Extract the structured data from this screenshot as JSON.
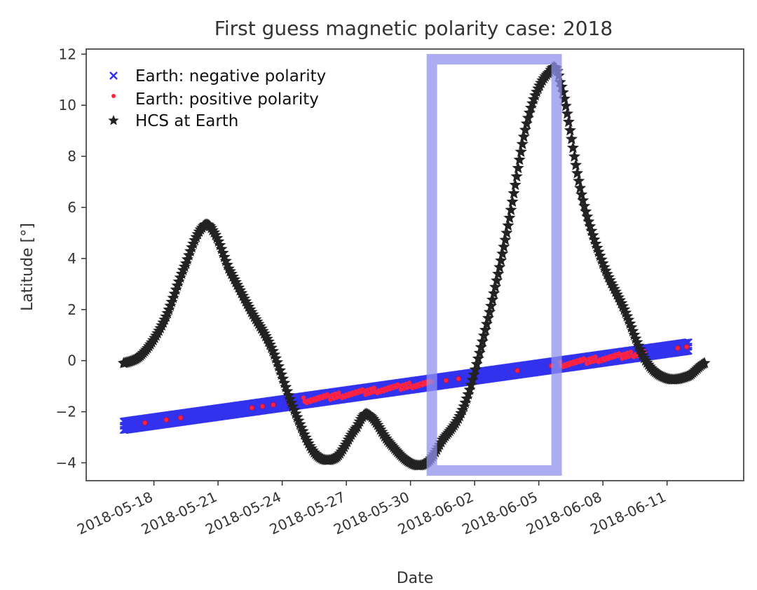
{
  "chart_data": {
    "type": "scatter",
    "title": "First guess magnetic polarity case: 2018",
    "xlabel": "Date",
    "ylabel": "Latitude [°]",
    "x_tick_labels": [
      "2018-05-18",
      "2018-05-21",
      "2018-05-24",
      "2018-05-27",
      "2018-05-30",
      "2018-06-02",
      "2018-06-05",
      "2018-06-08",
      "2018-06-11"
    ],
    "x_tick_dates": [
      "2018-05-18",
      "2018-05-21",
      "2018-05-24",
      "2018-05-27",
      "2018-05-30",
      "2018-06-02",
      "2018-06-05",
      "2018-06-08",
      "2018-06-11"
    ],
    "y_ticks": [
      -4,
      -2,
      0,
      2,
      4,
      6,
      8,
      10,
      12
    ],
    "xlim": [
      "2018-05-14T20:00",
      "2018-06-14T14:00"
    ],
    "ylim": [
      -4.7,
      12.2
    ],
    "legend_position": "top-left",
    "grid": false,
    "series": [
      {
        "name": "Earth: negative polarity",
        "marker": "x",
        "color": "#3333ee",
        "line": {
          "x_start": "2018-05-16T14:00",
          "y_start": -2.55,
          "x_end": "2018-06-12T00:00",
          "y_end": 0.55
        }
      },
      {
        "name": "Earth: positive polarity",
        "marker": "dot",
        "color": "#ff2244",
        "dense_segments": [
          {
            "from": "2018-05-25T00:00",
            "to": "2018-05-31T00:00"
          },
          {
            "from": "2018-06-06T00:00",
            "to": "2018-06-10T00:00"
          }
        ],
        "scattered_points": [
          "2018-05-17T14:00",
          "2018-05-18T14:00",
          "2018-05-19T06:00",
          "2018-05-22T14:00",
          "2018-05-23T02:00",
          "2018-05-23T14:00",
          "2018-05-24T08:00",
          "2018-05-31T16:00",
          "2018-06-01T06:00",
          "2018-06-04T00:00",
          "2018-06-05T14:00",
          "2018-06-11T12:00",
          "2018-06-11T22:00"
        ]
      },
      {
        "name": "HCS at Earth",
        "marker": "star",
        "color": "#222222",
        "points": [
          [
            "2018-05-16T14:00",
            -0.1
          ],
          [
            "2018-05-17T12:00",
            0.3
          ],
          [
            "2018-05-18T12:00",
            1.6
          ],
          [
            "2018-05-19T12:00",
            3.8
          ],
          [
            "2018-05-20T06:00",
            5.2
          ],
          [
            "2018-05-20T18:00",
            5.1
          ],
          [
            "2018-05-21T12:00",
            3.6
          ],
          [
            "2018-05-22T12:00",
            2.0
          ],
          [
            "2018-05-23T12:00",
            0.5
          ],
          [
            "2018-05-24T12:00",
            -1.8
          ],
          [
            "2018-05-25T12:00",
            -3.6
          ],
          [
            "2018-05-26T12:00",
            -3.8
          ],
          [
            "2018-05-27T12:00",
            -2.6
          ],
          [
            "2018-05-28T00:00",
            -2.1
          ],
          [
            "2018-05-29T00:00",
            -3.2
          ],
          [
            "2018-05-30T00:00",
            -4.0
          ],
          [
            "2018-05-30T18:00",
            -4.0
          ],
          [
            "2018-05-31T12:00",
            -3.1
          ],
          [
            "2018-06-01T12:00",
            -1.8
          ],
          [
            "2018-06-02T12:00",
            1.2
          ],
          [
            "2018-06-03T12:00",
            5.0
          ],
          [
            "2018-06-04T12:00",
            9.5
          ],
          [
            "2018-06-05T12:00",
            11.3
          ],
          [
            "2018-06-06T00:00",
            10.9
          ],
          [
            "2018-06-07T00:00",
            6.5
          ],
          [
            "2018-06-08T00:00",
            3.8
          ],
          [
            "2018-06-09T00:00",
            2.0
          ],
          [
            "2018-06-10T00:00",
            0.0
          ],
          [
            "2018-06-11T00:00",
            -0.7
          ],
          [
            "2018-06-12T00:00",
            -0.6
          ],
          [
            "2018-06-12T18:00",
            -0.1
          ]
        ]
      }
    ],
    "highlight_box": {
      "x_from": "2018-05-31T00:00",
      "x_to": "2018-06-05T20:00",
      "y_from": -4.3,
      "y_to": 11.8,
      "color": "#9090ee"
    }
  }
}
